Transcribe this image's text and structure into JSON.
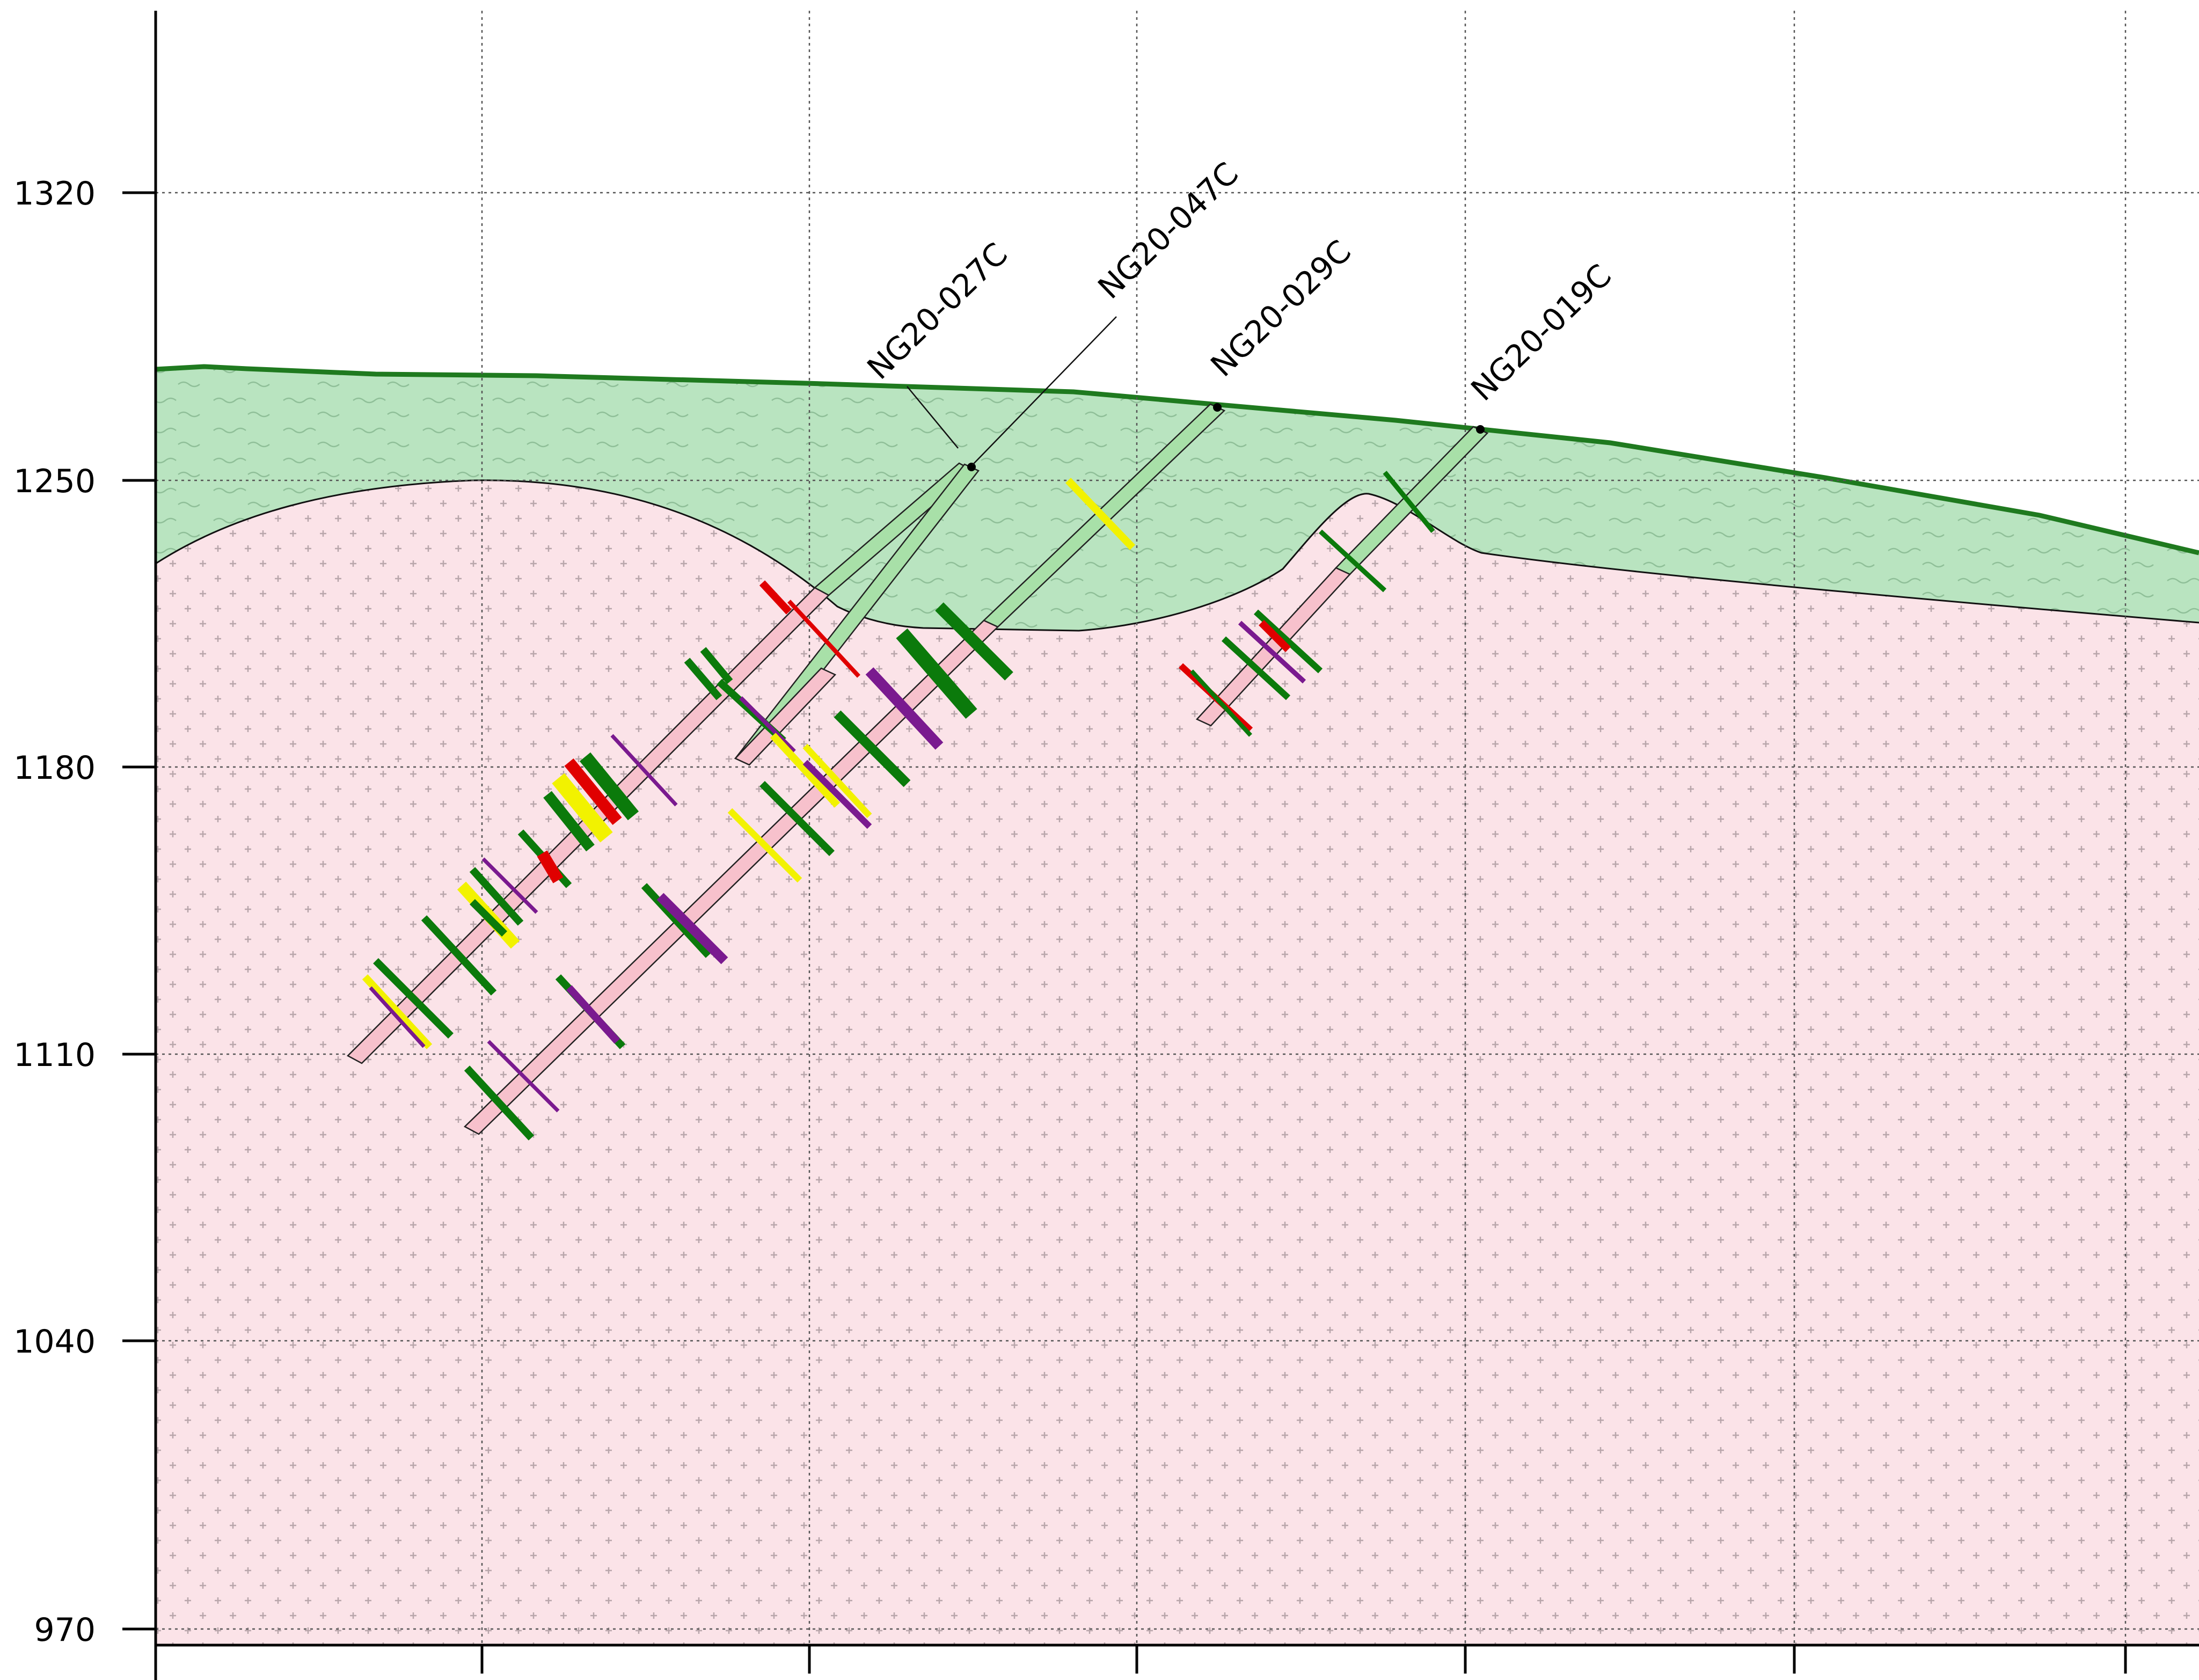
{
  "chart_data": {
    "type": "cross-section",
    "y_axis": {
      "ticks": [
        {
          "value": 1320,
          "label": "1320"
        },
        {
          "value": 1250,
          "label": "1250"
        },
        {
          "value": 1180,
          "label": "1180"
        },
        {
          "value": 1110,
          "label": "1110"
        },
        {
          "value": 1040,
          "label": "1040"
        },
        {
          "value": 970,
          "label": "970"
        }
      ]
    },
    "grid": true,
    "units": {
      "overburden": {
        "color": "#b9e4c0",
        "pattern": "wavy-dash",
        "boundary_color": "#1f7a1f"
      },
      "bedrock": {
        "color": "#fbe3e8",
        "pattern": "cross"
      }
    },
    "drill_holes": [
      {
        "id": "NG20-027C",
        "label": "NG20-027C"
      },
      {
        "id": "NG20-047C",
        "label": "NG20-047C"
      },
      {
        "id": "NG20-029C",
        "label": "NG20-029C"
      },
      {
        "id": "NG20-019C",
        "label": "NG20-019C"
      }
    ],
    "interval_colors": {
      "green": "#0b7a0b",
      "yellow": "#f2f200",
      "red": "#e00000",
      "purple": "#7a1a8f",
      "collar_casing": "#a8e0a8",
      "trace_rock": "#f7c1cc"
    }
  }
}
